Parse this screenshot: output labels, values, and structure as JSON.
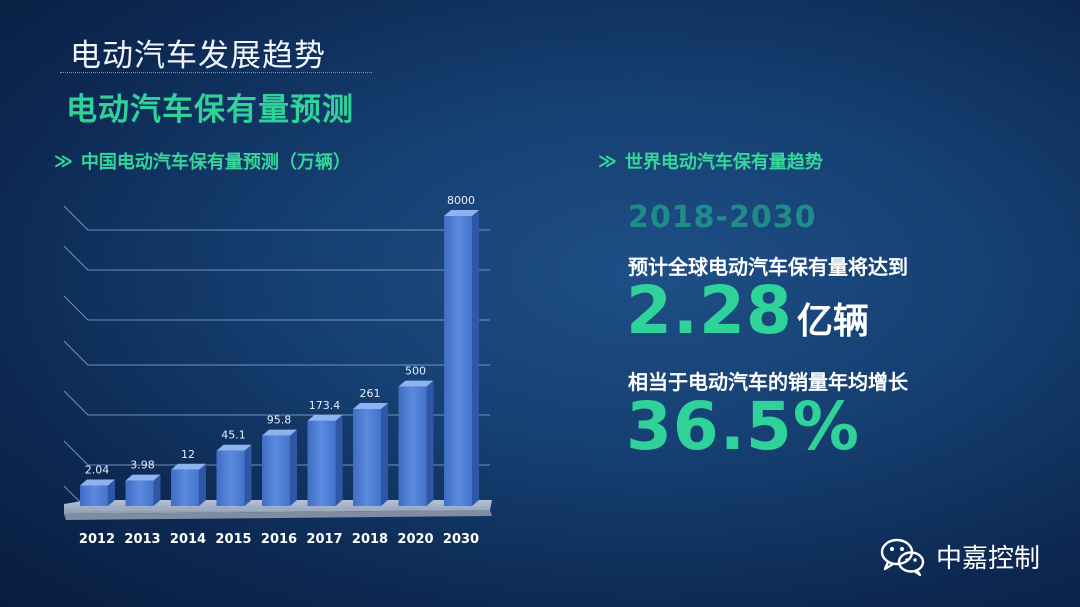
{
  "header": {
    "title": "电动汽车发展趋势",
    "subtitle": "电动汽车保有量预测"
  },
  "left_section": {
    "title": "中国电动汽车保有量预测（万辆）"
  },
  "right_section": {
    "title": "世界电动汽车保有量趋势",
    "range": "2018-2030",
    "desc1": "预计全球电动汽车保有量将达到",
    "big_number": "2.28",
    "big_unit": "亿辆",
    "desc2": "相当于电动汽车的销量年均增长",
    "percent": "36.5%"
  },
  "watermark": {
    "name": "中嘉控制",
    "icon": "wechat-icon"
  },
  "colors": {
    "accent": "#2fd39a",
    "bar": "#4f7fd6",
    "range": "#1e8d8a"
  },
  "chart_data": {
    "type": "bar",
    "categories": [
      "2012",
      "2013",
      "2014",
      "2015",
      "2016",
      "2017",
      "2018",
      "2020",
      "2030"
    ],
    "values": [
      2.04,
      3.98,
      12,
      45.1,
      95.8,
      173.4,
      261,
      500,
      8000
    ],
    "value_labels": [
      "2.04",
      "3.98",
      "12",
      "45.1",
      "95.8",
      "173.4",
      "261",
      "500",
      "8000"
    ],
    "title": "中国电动汽车保有量预测（万辆）",
    "xlabel": "",
    "ylabel": "",
    "grid": true,
    "scale": "non-linear"
  }
}
